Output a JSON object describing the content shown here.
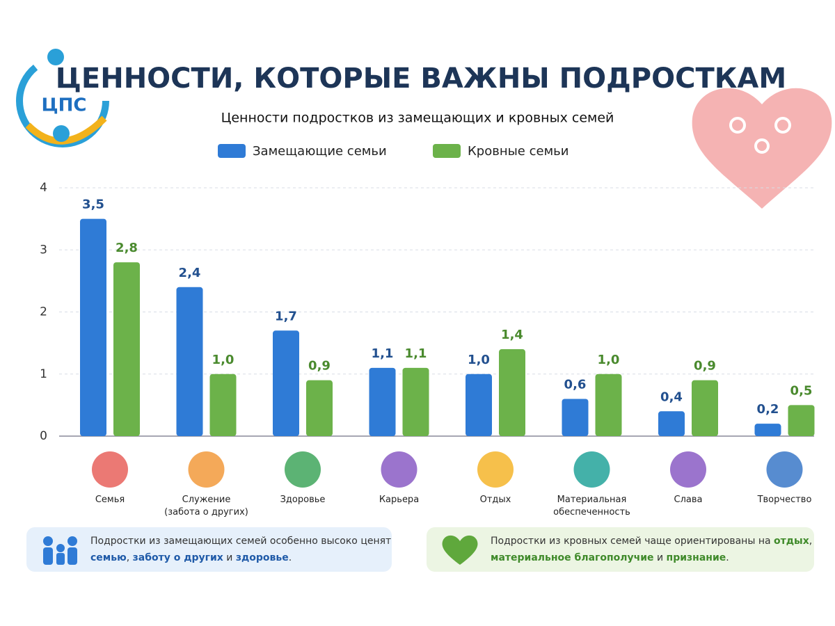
{
  "logo": "ЦПС",
  "chart_data": {
    "type": "bar",
    "title": "ЦЕННОСТИ, КОТОРЫЕ ВАЖНЫ ПОДРОСТКАМ",
    "subtitle": "Ценности подростков из замещающих и кровных семей",
    "categories": [
      "Семья",
      "Служение\n(забота о других)",
      "Здоровье",
      "Карьера",
      "Отдых",
      "Материальная\nобеспеченность",
      "Слава",
      "Творчество"
    ],
    "series": [
      {
        "name": "Замещающие семьи",
        "color": "#2f7bd6",
        "label_color": "#22508f",
        "values": [
          3.5,
          2.4,
          1.7,
          1.1,
          1.0,
          0.6,
          0.4,
          0.2
        ],
        "value_labels": [
          "3,5",
          "2,4",
          "1,7",
          "1,1",
          "1,0",
          "0,6",
          "0,4",
          "0,2"
        ]
      },
      {
        "name": "Кровные семьи",
        "color": "#6cb24a",
        "label_color": "#4a8a2e",
        "values": [
          2.8,
          1.0,
          0.9,
          1.1,
          1.4,
          1.0,
          0.9,
          0.5
        ],
        "value_labels": [
          "2,8",
          "1,0",
          "0,9",
          "1,1",
          "1,4",
          "1,0",
          "0,9",
          "0,5"
        ]
      }
    ],
    "ylim": [
      0,
      4
    ],
    "yticks": [
      0,
      1,
      2,
      3,
      4
    ],
    "grid": true
  },
  "notes": [
    {
      "parts": [
        "Подростки из замещающих семей особенно высоко ценят ",
        "семью",
        ", ",
        "заботу о других",
        " и ",
        "здоровье",
        "."
      ]
    },
    {
      "parts": [
        "Подростки из кровных семей чаще ориентированы на ",
        "отдых",
        ", ",
        "материальное благополучие",
        " и ",
        "признание",
        "."
      ]
    }
  ]
}
